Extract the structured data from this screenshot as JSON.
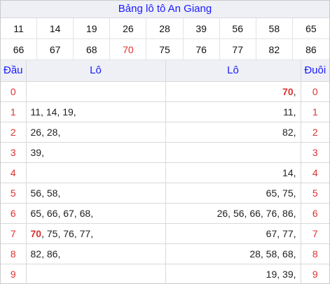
{
  "title": "Bảng lô tô An Giang",
  "numbers": [
    {
      "value": "11",
      "highlight": false
    },
    {
      "value": "14",
      "highlight": false
    },
    {
      "value": "19",
      "highlight": false
    },
    {
      "value": "26",
      "highlight": false
    },
    {
      "value": "28",
      "highlight": false
    },
    {
      "value": "39",
      "highlight": false
    },
    {
      "value": "56",
      "highlight": false
    },
    {
      "value": "58",
      "highlight": false
    },
    {
      "value": "65",
      "highlight": false
    },
    {
      "value": "66",
      "highlight": false
    },
    {
      "value": "67",
      "highlight": false
    },
    {
      "value": "68",
      "highlight": false
    },
    {
      "value": "70",
      "highlight": true
    },
    {
      "value": "75",
      "highlight": false
    },
    {
      "value": "76",
      "highlight": false
    },
    {
      "value": "77",
      "highlight": false
    },
    {
      "value": "82",
      "highlight": false
    },
    {
      "value": "86",
      "highlight": false
    }
  ],
  "headers": {
    "dau": "Đầu",
    "lo_left": "Lô",
    "lo_right": "Lô",
    "duoi": "Đuôi"
  },
  "rows": [
    {
      "dau": "0",
      "left": [],
      "right": [
        {
          "v": "70",
          "hl": true
        }
      ],
      "duoi": "0"
    },
    {
      "dau": "1",
      "left": [
        {
          "v": "11"
        },
        {
          "v": "14"
        },
        {
          "v": "19"
        }
      ],
      "right": [
        {
          "v": "11"
        }
      ],
      "duoi": "1"
    },
    {
      "dau": "2",
      "left": [
        {
          "v": "26"
        },
        {
          "v": "28"
        }
      ],
      "right": [
        {
          "v": "82"
        }
      ],
      "duoi": "2"
    },
    {
      "dau": "3",
      "left": [
        {
          "v": "39"
        }
      ],
      "right": [],
      "duoi": "3"
    },
    {
      "dau": "4",
      "left": [],
      "right": [
        {
          "v": "14"
        }
      ],
      "duoi": "4"
    },
    {
      "dau": "5",
      "left": [
        {
          "v": "56"
        },
        {
          "v": "58"
        }
      ],
      "right": [
        {
          "v": "65"
        },
        {
          "v": "75"
        }
      ],
      "duoi": "5"
    },
    {
      "dau": "6",
      "left": [
        {
          "v": "65"
        },
        {
          "v": "66"
        },
        {
          "v": "67"
        },
        {
          "v": "68"
        }
      ],
      "right": [
        {
          "v": "26"
        },
        {
          "v": "56"
        },
        {
          "v": "66"
        },
        {
          "v": "76"
        },
        {
          "v": "86"
        }
      ],
      "duoi": "6"
    },
    {
      "dau": "7",
      "left": [
        {
          "v": "70",
          "hl": true
        },
        {
          "v": "75"
        },
        {
          "v": "76"
        },
        {
          "v": "77"
        }
      ],
      "right": [
        {
          "v": "67"
        },
        {
          "v": "77"
        }
      ],
      "duoi": "7"
    },
    {
      "dau": "8",
      "left": [
        {
          "v": "82"
        },
        {
          "v": "86"
        }
      ],
      "right": [
        {
          "v": "28"
        },
        {
          "v": "58"
        },
        {
          "v": "68"
        }
      ],
      "duoi": "8"
    },
    {
      "dau": "9",
      "left": [],
      "right": [
        {
          "v": "19"
        },
        {
          "v": "39"
        }
      ],
      "duoi": "9"
    }
  ],
  "colors": {
    "accent_blue": "#1a1aff",
    "highlight_red": "#e03030",
    "header_bg": "#eef0f5"
  }
}
